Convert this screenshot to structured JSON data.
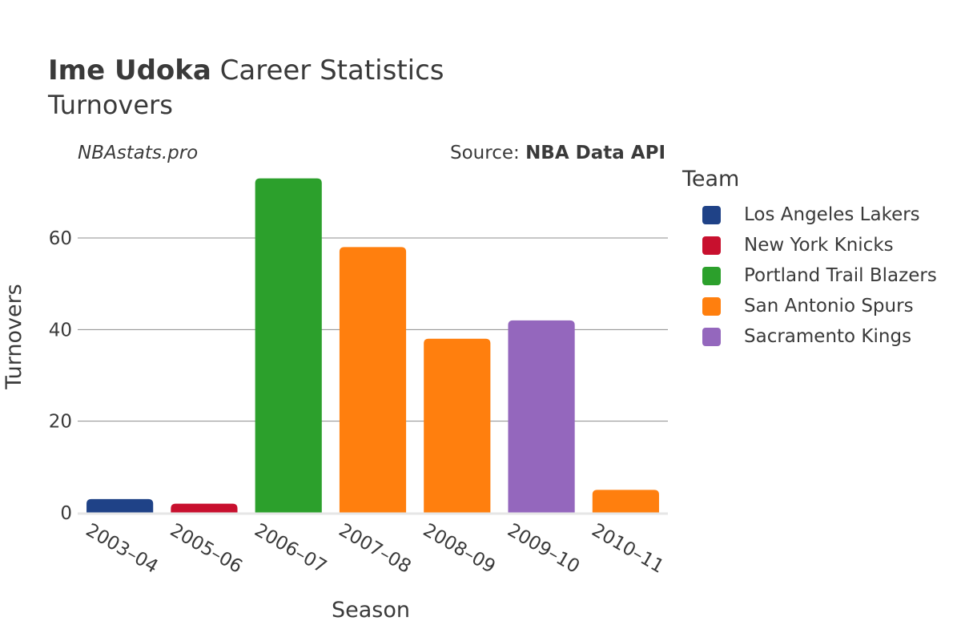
{
  "header": {
    "title_bold": "Ime Udoka",
    "title_rest": "Career Statistics",
    "subtitle": "Turnovers",
    "credit": "NBAstats.pro",
    "source_prefix": "Source: ",
    "source_name": "NBA Data API"
  },
  "chart_data": {
    "type": "bar",
    "categories": [
      "2003–04",
      "2005–06",
      "2006–07",
      "2007–08",
      "2008–09",
      "2009–10",
      "2010–11"
    ],
    "values": [
      3,
      2,
      73,
      58,
      38,
      42,
      5
    ],
    "teams": [
      "Los Angeles Lakers",
      "New York Knicks",
      "Portland Trail Blazers",
      "San Antonio Spurs",
      "San Antonio Spurs",
      "Sacramento Kings",
      "San Antonio Spurs"
    ],
    "xlabel": "Season",
    "ylabel": "Turnovers",
    "ylim": [
      0,
      75
    ],
    "yticks": [
      0,
      20,
      40,
      60
    ],
    "grid": true,
    "legend_title": "Team",
    "legend": [
      {
        "name": "Los Angeles Lakers",
        "color": "#1f4287"
      },
      {
        "name": "New York Knicks",
        "color": "#c8102e"
      },
      {
        "name": "Portland Trail Blazers",
        "color": "#2ca02c"
      },
      {
        "name": "San Antonio Spurs",
        "color": "#ff7f0e"
      },
      {
        "name": "Sacramento Kings",
        "color": "#9467bd"
      }
    ],
    "legend_position": "right"
  }
}
